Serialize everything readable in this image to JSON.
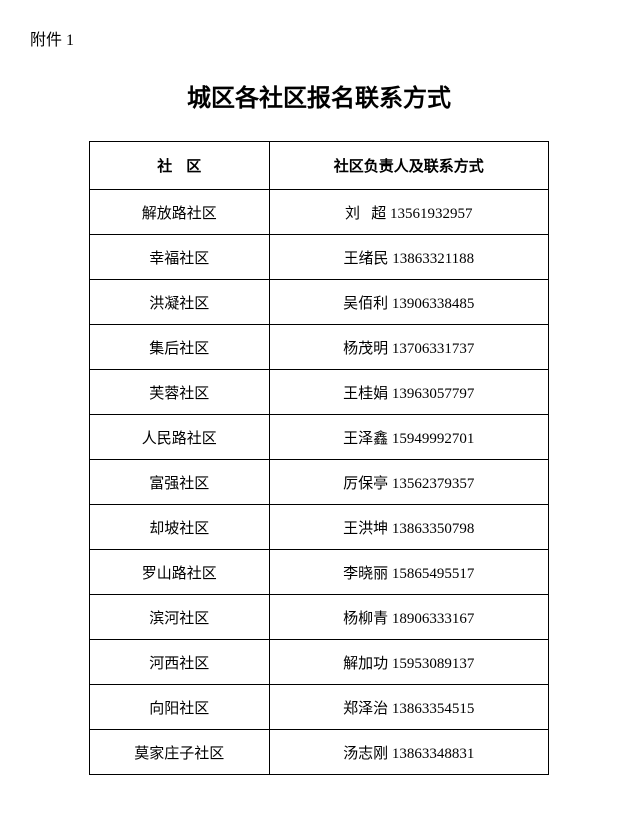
{
  "attachment_label": "附件 1",
  "title": "城区各社区报名联系方式",
  "table": {
    "headers": {
      "col1": "社",
      "col1b": "区",
      "col2": "社区负责人及联系方式"
    },
    "rows": [
      {
        "community": "解放路社区",
        "name": "刘",
        "name2": "超",
        "phone": "13561932957",
        "spaced": true
      },
      {
        "community": "幸福社区",
        "name": "王绪民",
        "phone": "13863321188",
        "spaced": false
      },
      {
        "community": "洪凝社区",
        "name": "吴佰利",
        "phone": "13906338485",
        "spaced": false
      },
      {
        "community": "集后社区",
        "name": "杨茂明",
        "phone": "13706331737",
        "spaced": false
      },
      {
        "community": "芙蓉社区",
        "name": "王桂娟",
        "phone": "13963057797",
        "spaced": false
      },
      {
        "community": "人民路社区",
        "name": "王泽鑫",
        "phone": "15949992701",
        "spaced": false
      },
      {
        "community": "富强社区",
        "name": "厉保亭",
        "phone": "13562379357",
        "spaced": false
      },
      {
        "community": "却坡社区",
        "name": "王洪坤",
        "phone": "13863350798",
        "spaced": false
      },
      {
        "community": "罗山路社区",
        "name": "李晓丽",
        "phone": "15865495517",
        "spaced": false
      },
      {
        "community": "滨河社区",
        "name": "杨柳青",
        "phone": "18906333167",
        "spaced": false
      },
      {
        "community": "河西社区",
        "name": "解加功",
        "phone": "15953089137",
        "spaced": false
      },
      {
        "community": "向阳社区",
        "name": "郑泽治",
        "phone": "13863354515",
        "spaced": false
      },
      {
        "community": "莫家庄子社区",
        "name": "汤志刚",
        "phone": "13863348831",
        "spaced": false
      }
    ]
  }
}
